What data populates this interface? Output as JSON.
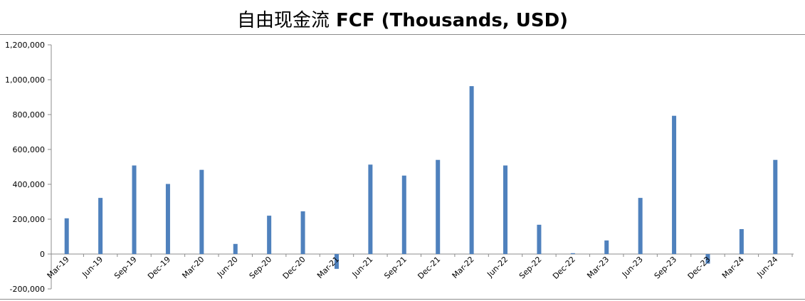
{
  "chart_data": {
    "type": "bar",
    "title_cn": "自由现金流",
    "title_en": "FCF (Thousands, USD)",
    "xlabel": "",
    "ylabel": "",
    "ylim": [
      -200000,
      1200000
    ],
    "yticks": [
      -200000,
      0,
      200000,
      400000,
      600000,
      800000,
      1000000,
      1200000
    ],
    "ytick_labels": [
      "-200,000",
      "0",
      "200,000",
      "400,000",
      "600,000",
      "800,000",
      "1,000,000",
      "1,200,000"
    ],
    "categories": [
      "Mar-19",
      "Jun-19",
      "Sep-19",
      "Dec-19",
      "Mar-20",
      "Jun-20",
      "Sep-20",
      "Dec-20",
      "Mar-21",
      "Jun-21",
      "Sep-21",
      "Dec-21",
      "Mar-22",
      "Jun-22",
      "Sep-22",
      "Dec-22",
      "Mar-23",
      "Jun-23",
      "Sep-23",
      "Dec-23",
      "Mar-24",
      "Jun-24"
    ],
    "values": [
      205000,
      322000,
      508000,
      402000,
      483000,
      58000,
      220000,
      245000,
      -85000,
      513000,
      450000,
      540000,
      963000,
      508000,
      168000,
      5000,
      78000,
      322000,
      793000,
      -55000,
      143000,
      540000
    ],
    "bar_color": "#4f81bd",
    "grid": false,
    "legend": "none"
  }
}
